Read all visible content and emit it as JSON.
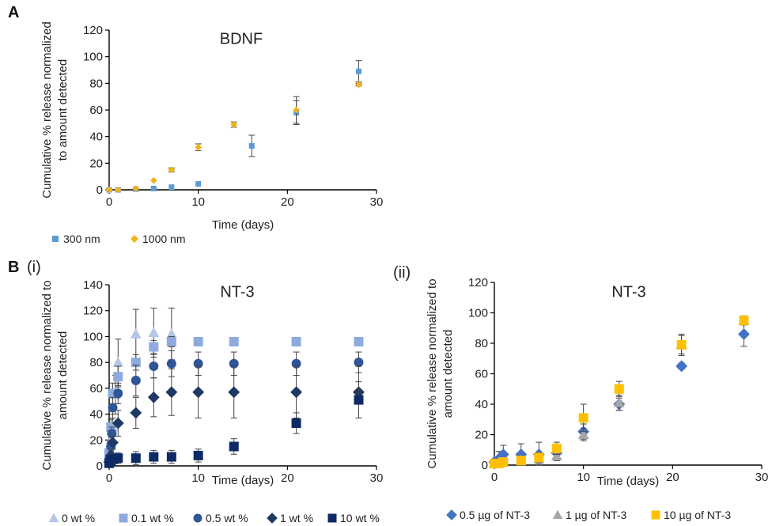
{
  "panels": {
    "A": "A",
    "B": "B",
    "B_i": "(i)",
    "B_ii": "(ii)"
  },
  "chart_data": [
    {
      "id": "A",
      "type": "scatter",
      "title": "BDNF",
      "xlabel": "Time (days)",
      "ylabel_lines": [
        "Cumulative % release normalized",
        "to amount detected"
      ],
      "xlim": [
        0,
        30
      ],
      "ylim": [
        0,
        120
      ],
      "xticks": [
        0,
        10,
        20,
        30
      ],
      "yticks": [
        0,
        20,
        40,
        60,
        80,
        100,
        120
      ],
      "legend_position": "bottom-left",
      "series": [
        {
          "name": "300 nm",
          "marker": "square",
          "color": "#5b9bd5",
          "points": [
            {
              "x": 0,
              "y": 0,
              "err": 0
            },
            {
              "x": 1,
              "y": 0,
              "err": 0
            },
            {
              "x": 3,
              "y": 0.5,
              "err": 0
            },
            {
              "x": 5,
              "y": 1,
              "err": 0
            },
            {
              "x": 7,
              "y": 2,
              "err": 0
            },
            {
              "x": 10,
              "y": 4.5,
              "err": 0
            },
            {
              "x": 16,
              "y": 33,
              "err": 8
            },
            {
              "x": 21,
              "y": 58,
              "err": 9
            },
            {
              "x": 28,
              "y": 89,
              "err": 8
            }
          ]
        },
        {
          "name": "1000 nm",
          "marker": "diamond",
          "color": "#f2b21a",
          "points": [
            {
              "x": 0,
              "y": 0,
              "err": 0
            },
            {
              "x": 1,
              "y": 0,
              "err": 0
            },
            {
              "x": 3,
              "y": 1,
              "err": 0
            },
            {
              "x": 5,
              "y": 7,
              "err": 0
            },
            {
              "x": 7,
              "y": 15,
              "err": 1.5
            },
            {
              "x": 10,
              "y": 32,
              "err": 2.5
            },
            {
              "x": 14,
              "y": 49,
              "err": 2
            },
            {
              "x": 21,
              "y": 60,
              "err": 10
            },
            {
              "x": 28,
              "y": 79,
              "err": 1
            }
          ]
        }
      ]
    },
    {
      "id": "Bi",
      "type": "scatter",
      "title": "NT-3",
      "xlabel": "Time (days)",
      "ylabel_lines": [
        "Cumulative % release normalized to",
        "amount detected"
      ],
      "xlim": [
        0,
        30
      ],
      "ylim": [
        0,
        140
      ],
      "xticks": [
        0,
        10,
        20,
        30
      ],
      "yticks": [
        0,
        20,
        40,
        60,
        80,
        100,
        120,
        140
      ],
      "legend_position": "bottom",
      "series": [
        {
          "name": "0 wt %",
          "marker": "triangle",
          "color": "#b4c7e7",
          "points": [
            {
              "x": 0,
              "y": 10,
              "err": 5
            },
            {
              "x": 0.2,
              "y": 20,
              "err": 8
            },
            {
              "x": 0.4,
              "y": 30,
              "err": 10
            },
            {
              "x": 0.7,
              "y": 55,
              "err": 15
            },
            {
              "x": 1,
              "y": 80,
              "err": 18
            },
            {
              "x": 3,
              "y": 102,
              "err": 19
            },
            {
              "x": 5,
              "y": 103,
              "err": 19
            },
            {
              "x": 7,
              "y": 102,
              "err": 20
            }
          ]
        },
        {
          "name": "0.1 wt %",
          "marker": "square",
          "color": "#8faadc",
          "points": [
            {
              "x": 0,
              "y": 10,
              "err": 3
            },
            {
              "x": 0.2,
              "y": 30,
              "err": 6
            },
            {
              "x": 0.4,
              "y": 56,
              "err": 8
            },
            {
              "x": 1,
              "y": 69,
              "err": 8
            },
            {
              "x": 3,
              "y": 80,
              "err": 6
            },
            {
              "x": 5,
              "y": 92,
              "err": 5
            },
            {
              "x": 7,
              "y": 96,
              "err": 4
            },
            {
              "x": 10,
              "y": 96,
              "err": 0
            },
            {
              "x": 14,
              "y": 96,
              "err": 0
            },
            {
              "x": 21,
              "y": 96,
              "err": 0
            },
            {
              "x": 28,
              "y": 96,
              "err": 0
            }
          ]
        },
        {
          "name": "0.5 wt %",
          "marker": "circle",
          "color": "#2f5597",
          "points": [
            {
              "x": 0,
              "y": 5,
              "err": 2
            },
            {
              "x": 0.2,
              "y": 15,
              "err": 4
            },
            {
              "x": 0.3,
              "y": 25,
              "err": 5
            },
            {
              "x": 0.4,
              "y": 45,
              "err": 8
            },
            {
              "x": 1,
              "y": 56,
              "err": 8
            },
            {
              "x": 3,
              "y": 66,
              "err": 12
            },
            {
              "x": 5,
              "y": 77,
              "err": 9
            },
            {
              "x": 7,
              "y": 79,
              "err": 10
            },
            {
              "x": 10,
              "y": 79,
              "err": 9
            },
            {
              "x": 14,
              "y": 79,
              "err": 9
            },
            {
              "x": 21,
              "y": 79,
              "err": 9
            },
            {
              "x": 28,
              "y": 80,
              "err": 8
            }
          ]
        },
        {
          "name": "1 wt %",
          "marker": "diamond",
          "color": "#203864",
          "points": [
            {
              "x": 0,
              "y": 3,
              "err": 2
            },
            {
              "x": 0.2,
              "y": 8,
              "err": 3
            },
            {
              "x": 0.4,
              "y": 18,
              "err": 5
            },
            {
              "x": 1,
              "y": 33,
              "err": 10
            },
            {
              "x": 3,
              "y": 41,
              "err": 12
            },
            {
              "x": 5,
              "y": 53,
              "err": 15
            },
            {
              "x": 7,
              "y": 57,
              "err": 18
            },
            {
              "x": 10,
              "y": 57,
              "err": 20
            },
            {
              "x": 14,
              "y": 57,
              "err": 20
            },
            {
              "x": 21,
              "y": 57,
              "err": 20
            },
            {
              "x": 28,
              "y": 57,
              "err": 20
            }
          ]
        },
        {
          "name": "10 wt %",
          "marker": "square",
          "color": "#0d2a66",
          "points": [
            {
              "x": 0,
              "y": 2,
              "err": 1
            },
            {
              "x": 0.2,
              "y": 4,
              "err": 2
            },
            {
              "x": 0.5,
              "y": 5,
              "err": 3
            },
            {
              "x": 1,
              "y": 6,
              "err": 4
            },
            {
              "x": 3,
              "y": 6,
              "err": 5
            },
            {
              "x": 5,
              "y": 7,
              "err": 5
            },
            {
              "x": 7,
              "y": 7,
              "err": 5
            },
            {
              "x": 10,
              "y": 8,
              "err": 5
            },
            {
              "x": 14,
              "y": 15,
              "err": 6
            },
            {
              "x": 21,
              "y": 33,
              "err": 8
            },
            {
              "x": 28,
              "y": 51,
              "err": 14
            }
          ]
        }
      ]
    },
    {
      "id": "Bii",
      "type": "scatter",
      "title": "NT-3",
      "xlabel": "Time (days)",
      "ylabel_lines": [
        "Cumulative % release normalized to",
        "amount detected"
      ],
      "xlim": [
        0,
        30
      ],
      "ylim": [
        0,
        120
      ],
      "xticks": [
        0,
        10,
        20,
        30
      ],
      "yticks": [
        0,
        20,
        40,
        60,
        80,
        100,
        120
      ],
      "legend_position": "bottom",
      "series": [
        {
          "name": "0.5 µg of NT-3",
          "marker": "diamond",
          "color": "#4472c4",
          "points": [
            {
              "x": 0,
              "y": 2,
              "err": 2
            },
            {
              "x": 0.5,
              "y": 4,
              "err": 5
            },
            {
              "x": 1,
              "y": 7,
              "err": 6
            },
            {
              "x": 3,
              "y": 7,
              "err": 7
            },
            {
              "x": 5,
              "y": 7,
              "err": 8
            },
            {
              "x": 7,
              "y": 8,
              "err": 5
            },
            {
              "x": 10,
              "y": 22,
              "err": 5
            },
            {
              "x": 14,
              "y": 40,
              "err": 4
            },
            {
              "x": 21,
              "y": 65,
              "err": 2
            },
            {
              "x": 28,
              "y": 86,
              "err": 8
            }
          ]
        },
        {
          "name": "1 µg of NT-3",
          "marker": "triangle",
          "color": "#a6a6a6",
          "points": [
            {
              "x": 0,
              "y": 1,
              "err": 1
            },
            {
              "x": 0.5,
              "y": 2,
              "err": 2
            },
            {
              "x": 1,
              "y": 2,
              "err": 2
            },
            {
              "x": 3,
              "y": 3,
              "err": 3
            },
            {
              "x": 5,
              "y": 4,
              "err": 3
            },
            {
              "x": 7,
              "y": 6,
              "err": 3
            },
            {
              "x": 10,
              "y": 20,
              "err": 4
            },
            {
              "x": 14,
              "y": 41,
              "err": 5
            },
            {
              "x": 21,
              "y": 79,
              "err": 6
            },
            {
              "x": 28,
              "y": 95,
              "err": 3
            }
          ]
        },
        {
          "name": "10 µg of NT-3",
          "marker": "square",
          "color": "#ffc000",
          "points": [
            {
              "x": 0,
              "y": 1,
              "err": 1
            },
            {
              "x": 0.5,
              "y": 1,
              "err": 1
            },
            {
              "x": 1,
              "y": 2,
              "err": 1
            },
            {
              "x": 3,
              "y": 3,
              "err": 2
            },
            {
              "x": 5,
              "y": 5,
              "err": 3
            },
            {
              "x": 7,
              "y": 11,
              "err": 4
            },
            {
              "x": 10,
              "y": 31,
              "err": 9
            },
            {
              "x": 14,
              "y": 50,
              "err": 5
            },
            {
              "x": 21,
              "y": 79,
              "err": 7
            },
            {
              "x": 28,
              "y": 95,
              "err": 2
            }
          ]
        }
      ]
    }
  ]
}
